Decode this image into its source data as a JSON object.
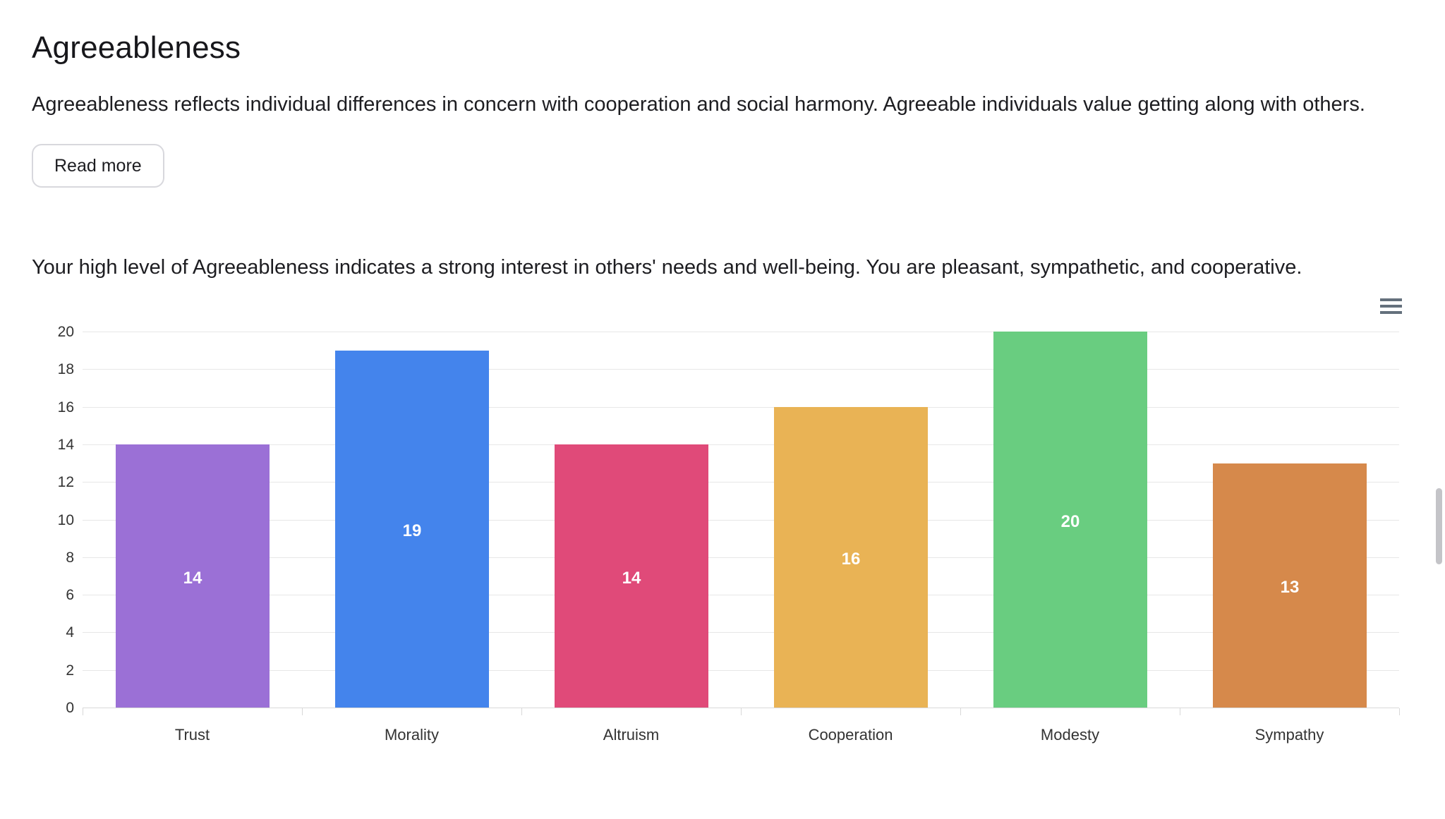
{
  "page": {
    "title": "Agreeableness",
    "description": "Agreeableness reflects individual differences in concern with cooperation and social harmony. Agreeable individuals value getting along with others.",
    "read_more_label": "Read more",
    "result_text": "Your high level of Agreeableness indicates a strong interest in others' needs and well-being. You are pleasant, sympathetic, and cooperative."
  },
  "chart_data": {
    "type": "bar",
    "title": "",
    "xlabel": "",
    "ylabel": "",
    "categories": [
      "Trust",
      "Morality",
      "Altruism",
      "Cooperation",
      "Modesty",
      "Sympathy"
    ],
    "values": [
      14,
      19,
      14,
      16,
      20,
      13
    ],
    "bar_colors": [
      "#9b70d6",
      "#4484ec",
      "#e04a79",
      "#e9b355",
      "#69cd80",
      "#d6894b"
    ],
    "data_label_color": "#ffffff",
    "ylim": [
      0,
      20
    ],
    "yticks": [
      0,
      2,
      4,
      6,
      8,
      10,
      12,
      14,
      16,
      18,
      20
    ],
    "grid": true,
    "legend": false,
    "data_labels_inside": true
  },
  "colors": {
    "grid": "#e7e7e7",
    "axis_line": "#d8d8d8",
    "axis_label": "#333333",
    "menu_icon": "#64707c"
  }
}
